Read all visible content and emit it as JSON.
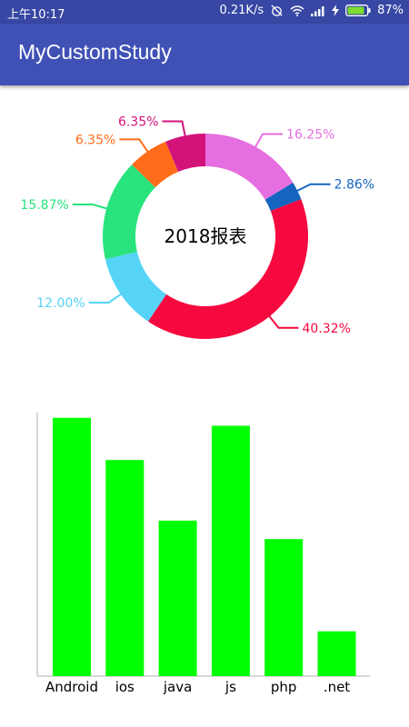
{
  "status_bar": {
    "time": "上午10:17",
    "speed": "0.21K/s",
    "battery": "87%",
    "icons": [
      "alarm-off-icon",
      "wifi-icon",
      "signal-icon",
      "charging-icon",
      "battery-icon"
    ]
  },
  "app_bar": {
    "title": "MyCustomStudy",
    "color": "#3f51b5"
  },
  "chart_data": [
    {
      "type": "pie",
      "style": "donut",
      "center_label": "2018报表",
      "slices": [
        {
          "label": "16.25%",
          "value": 16.25,
          "color": "#e56fe0"
        },
        {
          "label": "2.86%",
          "value": 2.86,
          "color": "#1565c0"
        },
        {
          "label": "40.32%",
          "value": 40.32,
          "color": "#f5093f"
        },
        {
          "label": "12.00%",
          "value": 12.0,
          "color": "#56d4f8"
        },
        {
          "label": "15.87%",
          "value": 15.87,
          "color": "#29e37c"
        },
        {
          "label": "6.35%",
          "value": 6.35,
          "color": "#ff6d1a"
        },
        {
          "label": "6.35%",
          "value": 6.35,
          "color": "#d3137a"
        }
      ]
    },
    {
      "type": "bar",
      "categories": [
        "Android",
        "ios",
        "java",
        "js",
        "php",
        ".net"
      ],
      "values": [
        98,
        82,
        59,
        95,
        52,
        17
      ],
      "ylim": [
        0,
        100
      ],
      "bar_color": "#00ff00"
    }
  ]
}
